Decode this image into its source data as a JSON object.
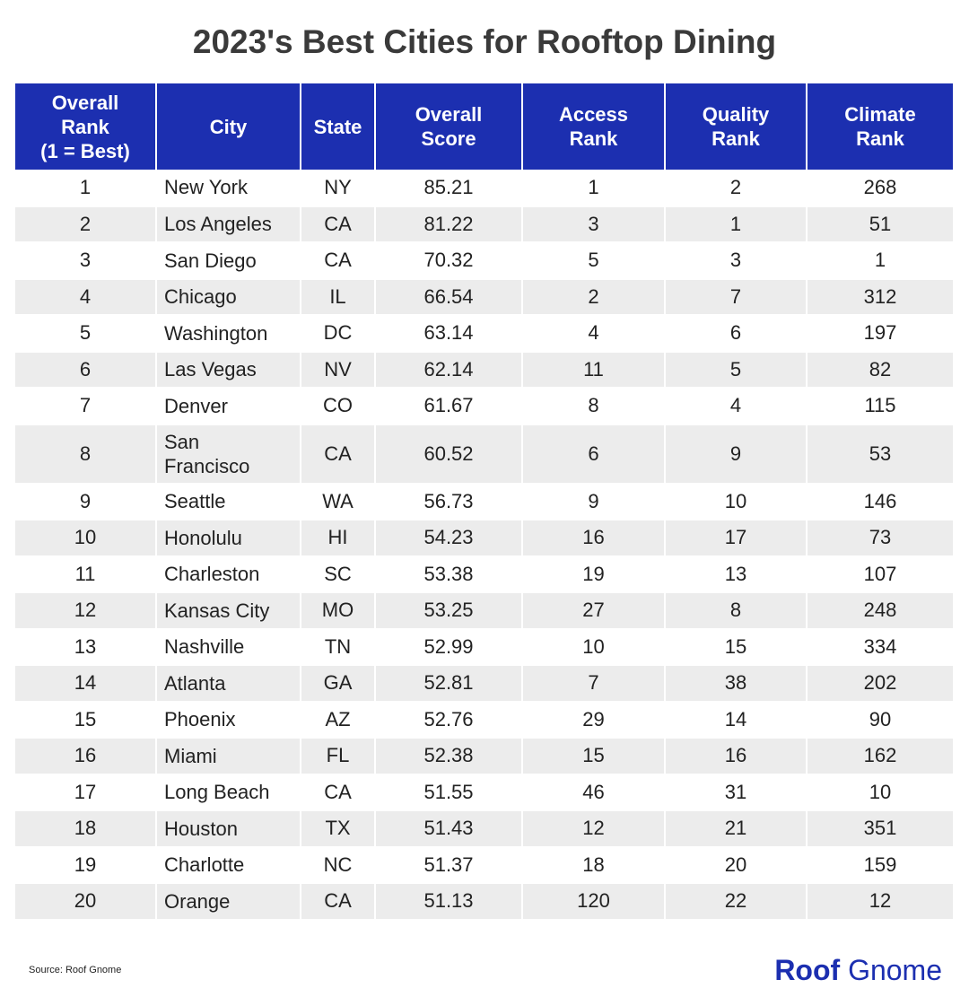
{
  "title": "2023's Best Cities for Rooftop Dining",
  "source": "Source: Roof Gnome",
  "logo": {
    "part1": "Roof",
    "part2": " Gnome"
  },
  "colors": {
    "header_bg": "#1c2fb0",
    "stripe": "#ececec",
    "logo": "#1c2fb0"
  },
  "chart_data": {
    "type": "table",
    "title": "2023's Best Cities for Rooftop Dining",
    "columns": [
      "Overall Rank (1 = Best)",
      "City",
      "State",
      "Overall Score",
      "Access Rank",
      "Quality Rank",
      "Climate Rank"
    ],
    "rows": [
      [
        "1",
        "New York",
        "NY",
        "85.21",
        "1",
        "2",
        "268"
      ],
      [
        "2",
        "Los Angeles",
        "CA",
        "81.22",
        "3",
        "1",
        "51"
      ],
      [
        "3",
        "San Diego",
        "CA",
        "70.32",
        "5",
        "3",
        "1"
      ],
      [
        "4",
        "Chicago",
        "IL",
        "66.54",
        "2",
        "7",
        "312"
      ],
      [
        "5",
        "Washington",
        "DC",
        "63.14",
        "4",
        "6",
        "197"
      ],
      [
        "6",
        "Las Vegas",
        "NV",
        "62.14",
        "11",
        "5",
        "82"
      ],
      [
        "7",
        "Denver",
        "CO",
        "61.67",
        "8",
        "4",
        "115"
      ],
      [
        "8",
        "San Francisco",
        "CA",
        "60.52",
        "6",
        "9",
        "53"
      ],
      [
        "9",
        "Seattle",
        "WA",
        "56.73",
        "9",
        "10",
        "146"
      ],
      [
        "10",
        "Honolulu",
        "HI",
        "54.23",
        "16",
        "17",
        "73"
      ],
      [
        "11",
        "Charleston",
        "SC",
        "53.38",
        "19",
        "13",
        "107"
      ],
      [
        "12",
        "Kansas City",
        "MO",
        "53.25",
        "27",
        "8",
        "248"
      ],
      [
        "13",
        "Nashville",
        "TN",
        "52.99",
        "10",
        "15",
        "334"
      ],
      [
        "14",
        "Atlanta",
        "GA",
        "52.81",
        "7",
        "38",
        "202"
      ],
      [
        "15",
        "Phoenix",
        "AZ",
        "52.76",
        "29",
        "14",
        "90"
      ],
      [
        "16",
        "Miami",
        "FL",
        "52.38",
        "15",
        "16",
        "162"
      ],
      [
        "17",
        "Long Beach",
        "CA",
        "51.55",
        "46",
        "31",
        "10"
      ],
      [
        "18",
        "Houston",
        "TX",
        "51.43",
        "12",
        "21",
        "351"
      ],
      [
        "19",
        "Charlotte",
        "NC",
        "51.37",
        "18",
        "20",
        "159"
      ],
      [
        "20",
        "Orange",
        "CA",
        "51.13",
        "120",
        "22",
        "12"
      ]
    ]
  }
}
